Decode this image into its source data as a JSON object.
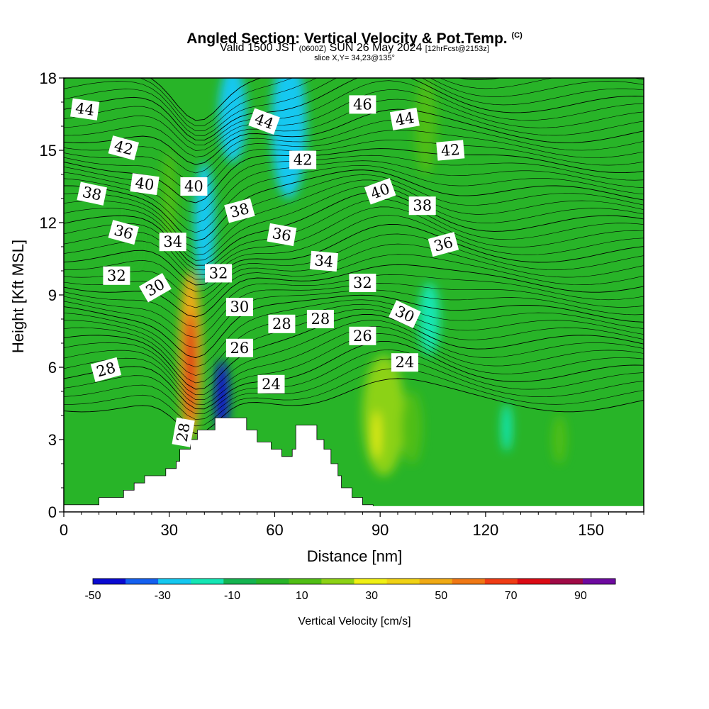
{
  "title": {
    "main": "Angled Section: Vertical Velocity & Pot.Temp.",
    "copyright": "(C)",
    "valid_pre": "Valid 1500 JST",
    "valid_utc": "(0600Z)",
    "valid_date": "SUN 26 May 2024",
    "forecast": "[12hrFcst@2153z]",
    "slice": "slice X,Y= 34,23@135°"
  },
  "chart_data": {
    "type": "heatmap",
    "xlabel": "Distance [nm]",
    "ylabel": "Height [Kft MSL]",
    "xlim": [
      0,
      165
    ],
    "ylim": [
      0,
      18
    ],
    "x_ticks": [
      "0",
      "30",
      "60",
      "90",
      "120",
      "150"
    ],
    "y_ticks": [
      "0",
      "3",
      "6",
      "9",
      "12",
      "15",
      "18"
    ],
    "colorbar": {
      "label": "Vertical Velocity [cm/s]",
      "tick_labels": [
        "-50",
        "-30",
        "-10",
        "10",
        "30",
        "50",
        "70",
        "90"
      ],
      "boundaries": [
        -50,
        -40,
        -30,
        -20,
        -10,
        0,
        10,
        20,
        30,
        40,
        50,
        60,
        70,
        80,
        90,
        100
      ],
      "colors": [
        "#0a0ad2",
        "#1460f0",
        "#14c8f0",
        "#14e6b4",
        "#14b450",
        "#28b428",
        "#50be14",
        "#8cd214",
        "#f0f014",
        "#f0d214",
        "#f0aa14",
        "#f07814",
        "#f03c14",
        "#dc0a14",
        "#a00a46",
        "#6e0aa0"
      ]
    },
    "terrain_profile": [
      [
        0,
        0.3
      ],
      [
        10,
        0.3
      ],
      [
        10,
        0.6
      ],
      [
        17,
        0.6
      ],
      [
        17,
        0.9
      ],
      [
        20,
        0.9
      ],
      [
        20,
        1.2
      ],
      [
        23,
        1.2
      ],
      [
        23,
        1.5
      ],
      [
        29,
        1.5
      ],
      [
        29,
        1.8
      ],
      [
        32,
        1.8
      ],
      [
        32,
        2.1
      ],
      [
        33,
        2.1
      ],
      [
        33,
        2.6
      ],
      [
        36,
        2.6
      ],
      [
        36,
        3.0
      ],
      [
        38,
        3.0
      ],
      [
        38,
        3.4
      ],
      [
        43,
        3.4
      ],
      [
        43,
        3.9
      ],
      [
        52,
        3.9
      ],
      [
        52,
        3.4
      ],
      [
        55,
        3.4
      ],
      [
        55,
        2.9
      ],
      [
        59,
        2.9
      ],
      [
        59,
        2.6
      ],
      [
        62,
        2.6
      ],
      [
        62,
        2.3
      ],
      [
        65,
        2.3
      ],
      [
        65,
        2.6
      ],
      [
        66,
        2.6
      ],
      [
        66,
        3.6
      ],
      [
        72,
        3.6
      ],
      [
        72,
        3.0
      ],
      [
        74,
        3.0
      ],
      [
        74,
        2.6
      ],
      [
        76,
        2.6
      ],
      [
        76,
        2.0
      ],
      [
        78,
        2.0
      ],
      [
        78,
        1.5
      ],
      [
        79,
        1.5
      ],
      [
        79,
        1.0
      ],
      [
        82,
        1.0
      ],
      [
        82,
        0.6
      ],
      [
        85,
        0.6
      ],
      [
        85,
        0.3
      ],
      [
        88,
        0.3
      ],
      [
        88,
        0
      ]
    ],
    "velocity_features": [
      {
        "x": 36,
        "y": 6.5,
        "rx": 3.2,
        "ry": 3.5,
        "value": 50
      },
      {
        "x": 36,
        "y": 6.0,
        "rx": 1.6,
        "ry": 2.3,
        "value": 85
      },
      {
        "x": 45,
        "y": 4.8,
        "rx": 2.0,
        "ry": 1.5,
        "value": -45
      },
      {
        "x": 64,
        "y": 16.0,
        "rx": 5,
        "ry": 3,
        "value": -30
      },
      {
        "x": 48,
        "y": 16.5,
        "rx": 4,
        "ry": 2,
        "value": -30
      },
      {
        "x": 40,
        "y": 12.0,
        "rx": 3,
        "ry": 2.5,
        "value": -25
      },
      {
        "x": 104,
        "y": 8.0,
        "rx": 3,
        "ry": 1.5,
        "value": -20
      },
      {
        "x": 126,
        "y": 3.5,
        "rx": 1.5,
        "ry": 1,
        "value": -20
      },
      {
        "x": 91,
        "y": 4.0,
        "rx": 6,
        "ry": 2.5,
        "value": 22
      },
      {
        "x": 89,
        "y": 3.2,
        "rx": 1,
        "ry": 1,
        "value": 30
      },
      {
        "x": 99,
        "y": 3.5,
        "rx": 3,
        "ry": 1.5,
        "value": 18
      },
      {
        "x": 103,
        "y": 16.0,
        "rx": 3,
        "ry": 2,
        "value": 18
      },
      {
        "x": 141,
        "y": 3.0,
        "rx": 2,
        "ry": 1,
        "value": 18
      },
      {
        "x": 30,
        "y": 13.0,
        "rx": 2,
        "ry": 2,
        "value": 18
      },
      {
        "x": 20,
        "y": 12.0,
        "rx": 2,
        "ry": 2,
        "value": 3
      }
    ],
    "theta_contours": [
      {
        "value": 24,
        "labeled": true
      },
      {
        "value": 26,
        "labeled": true
      },
      {
        "value": 28,
        "labeled": true
      },
      {
        "value": 30,
        "labeled": true
      },
      {
        "value": 32,
        "labeled": true
      },
      {
        "value": 34,
        "labeled": true
      },
      {
        "value": 36,
        "labeled": true
      },
      {
        "value": 38,
        "labeled": true
      },
      {
        "value": 40,
        "labeled": true
      },
      {
        "value": 42,
        "labeled": true
      },
      {
        "value": 44,
        "labeled": true
      },
      {
        "value": 46,
        "labeled": true
      }
    ],
    "contour_labels": [
      {
        "text": "44",
        "x": 6,
        "y": 16.7,
        "angle": 8
      },
      {
        "text": "42",
        "x": 17,
        "y": 15.1,
        "angle": 15
      },
      {
        "text": "40",
        "x": 23,
        "y": 13.6,
        "angle": 8
      },
      {
        "text": "38",
        "x": 8,
        "y": 13.2,
        "angle": 12
      },
      {
        "text": "36",
        "x": 17,
        "y": 11.6,
        "angle": 15
      },
      {
        "text": "34",
        "x": 31,
        "y": 11.2,
        "angle": 0
      },
      {
        "text": "32",
        "x": 15,
        "y": 9.8,
        "angle": 0
      },
      {
        "text": "30",
        "x": 26,
        "y": 9.3,
        "angle": -30
      },
      {
        "text": "28",
        "x": 12,
        "y": 5.9,
        "angle": -15
      },
      {
        "text": "28",
        "x": 34,
        "y": 3.3,
        "angle": -80
      },
      {
        "text": "40",
        "x": 37,
        "y": 13.5,
        "angle": 0
      },
      {
        "text": "38",
        "x": 50,
        "y": 12.5,
        "angle": -15
      },
      {
        "text": "32",
        "x": 44,
        "y": 9.9,
        "angle": 0
      },
      {
        "text": "30",
        "x": 50,
        "y": 8.5,
        "angle": 0
      },
      {
        "text": "26",
        "x": 50,
        "y": 6.8,
        "angle": 0
      },
      {
        "text": "24",
        "x": 59,
        "y": 5.3,
        "angle": 0
      },
      {
        "text": "28",
        "x": 62,
        "y": 7.8,
        "angle": 0
      },
      {
        "text": "28",
        "x": 73,
        "y": 8.0,
        "angle": 0
      },
      {
        "text": "26",
        "x": 85,
        "y": 7.3,
        "angle": 0
      },
      {
        "text": "24",
        "x": 97,
        "y": 6.2,
        "angle": 0
      },
      {
        "text": "44",
        "x": 57,
        "y": 16.2,
        "angle": 20
      },
      {
        "text": "42",
        "x": 68,
        "y": 14.6,
        "angle": 0
      },
      {
        "text": "36",
        "x": 62,
        "y": 11.5,
        "angle": 10
      },
      {
        "text": "34",
        "x": 74,
        "y": 10.4,
        "angle": 5
      },
      {
        "text": "32",
        "x": 85,
        "y": 9.5,
        "angle": 0
      },
      {
        "text": "30",
        "x": 97,
        "y": 8.2,
        "angle": 25
      },
      {
        "text": "46",
        "x": 85,
        "y": 16.9,
        "angle": 0
      },
      {
        "text": "44",
        "x": 97,
        "y": 16.3,
        "angle": -10
      },
      {
        "text": "42",
        "x": 110,
        "y": 15.0,
        "angle": -5
      },
      {
        "text": "40",
        "x": 90,
        "y": 13.3,
        "angle": -20
      },
      {
        "text": "38",
        "x": 102,
        "y": 12.7,
        "angle": 0
      },
      {
        "text": "36",
        "x": 108,
        "y": 11.1,
        "angle": -15
      }
    ]
  }
}
